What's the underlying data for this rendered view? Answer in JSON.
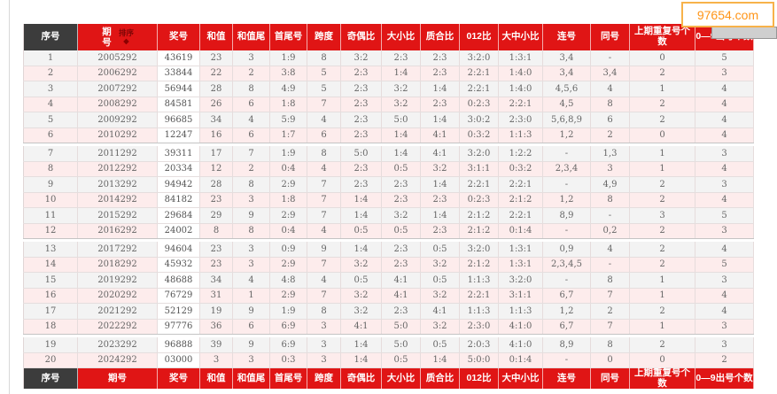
{
  "watermark": {
    "text": "97654.com"
  },
  "colors": {
    "header_red": "#e01515",
    "header_dark": "#3c3c3c",
    "row_pink": "#fdecec",
    "row_gray": "#f3f3f3",
    "watermark_orange": "#ff9518",
    "watermark_border": "#f7b24a"
  },
  "table": {
    "sort_label": "排序",
    "sort_arrow": "◆",
    "columns": [
      "序号",
      "期号",
      "奖号",
      "和值",
      "和值尾",
      "首尾号",
      "跨度",
      "奇偶比",
      "大小比",
      "质合比",
      "012比",
      "大中小比",
      "连号",
      "同号",
      "上期重复号个数",
      "0—9出号个数"
    ],
    "column_keys": [
      "serial",
      "period",
      "prize",
      "sum",
      "sum-tail",
      "first-last",
      "span",
      "odd-even",
      "big-small",
      "prime-composite",
      "zero-one-two",
      "big-mid-small",
      "consecutive",
      "same",
      "repeat-count",
      "digit-count"
    ],
    "group_ends": [
      5,
      11,
      17
    ],
    "rows": [
      [
        "1",
        "2005292",
        "43619",
        "23",
        "3",
        "1:9",
        "8",
        "3:2",
        "2:3",
        "2:3",
        "3:2:0",
        "1:3:1",
        "3,4",
        "-",
        "0",
        "5"
      ],
      [
        "2",
        "2006292",
        "33844",
        "22",
        "2",
        "3:8",
        "5",
        "2:3",
        "1:4",
        "2:3",
        "2:2:1",
        "1:4:0",
        "3,4",
        "3,4",
        "2",
        "3"
      ],
      [
        "3",
        "2007292",
        "56944",
        "28",
        "8",
        "4:9",
        "5",
        "2:3",
        "3:2",
        "1:4",
        "2:2:1",
        "1:4:0",
        "4,5,6",
        "4",
        "1",
        "4"
      ],
      [
        "4",
        "2008292",
        "84581",
        "26",
        "6",
        "1:8",
        "7",
        "2:3",
        "3:2",
        "2:3",
        "0:2:3",
        "2:2:1",
        "4,5",
        "8",
        "2",
        "4"
      ],
      [
        "5",
        "2009292",
        "96685",
        "34",
        "4",
        "5:9",
        "4",
        "2:3",
        "5:0",
        "1:4",
        "3:0:2",
        "2:3:0",
        "5,6,8,9",
        "6",
        "2",
        "4"
      ],
      [
        "6",
        "2010292",
        "12247",
        "16",
        "6",
        "1:7",
        "6",
        "2:3",
        "1:4",
        "4:1",
        "0:3:2",
        "1:1:3",
        "1,2",
        "2",
        "0",
        "4"
      ],
      [
        "7",
        "2011292",
        "39311",
        "17",
        "7",
        "1:9",
        "8",
        "5:0",
        "1:4",
        "4:1",
        "3:2:0",
        "1:2:2",
        "-",
        "1,3",
        "1",
        "3"
      ],
      [
        "8",
        "2012292",
        "20334",
        "12",
        "2",
        "0:4",
        "4",
        "2:3",
        "0:5",
        "3:2",
        "3:1:1",
        "0:3:2",
        "2,3,4",
        "3",
        "1",
        "4"
      ],
      [
        "9",
        "2013292",
        "94942",
        "28",
        "8",
        "2:9",
        "7",
        "2:3",
        "2:3",
        "1:4",
        "2:2:1",
        "2:2:1",
        "-",
        "4,9",
        "2",
        "3"
      ],
      [
        "10",
        "2014292",
        "84182",
        "23",
        "3",
        "1:8",
        "7",
        "1:4",
        "2:3",
        "2:3",
        "0:2:3",
        "2:1:2",
        "1,2",
        "8",
        "2",
        "4"
      ],
      [
        "11",
        "2015292",
        "29684",
        "29",
        "9",
        "2:9",
        "7",
        "1:4",
        "3:2",
        "1:4",
        "2:1:2",
        "2:2:1",
        "8,9",
        "-",
        "3",
        "5"
      ],
      [
        "12",
        "2016292",
        "24002",
        "8",
        "8",
        "0:4",
        "4",
        "0:5",
        "0:5",
        "2:3",
        "2:1:2",
        "0:1:4",
        "-",
        "0,2",
        "2",
        "3"
      ],
      [
        "13",
        "2017292",
        "94604",
        "23",
        "3",
        "0:9",
        "9",
        "1:4",
        "2:3",
        "0:5",
        "3:2:0",
        "1:3:1",
        "0,9",
        "4",
        "2",
        "4"
      ],
      [
        "14",
        "2018292",
        "45932",
        "23",
        "3",
        "2:9",
        "7",
        "3:2",
        "2:3",
        "3:2",
        "2:1:2",
        "1:3:1",
        "2,3,4,5",
        "-",
        "2",
        "5"
      ],
      [
        "15",
        "2019292",
        "48688",
        "34",
        "4",
        "4:8",
        "4",
        "0:5",
        "4:1",
        "0:5",
        "1:1:3",
        "3:2:0",
        "-",
        "8",
        "1",
        "3"
      ],
      [
        "16",
        "2020292",
        "76729",
        "31",
        "1",
        "2:9",
        "7",
        "3:2",
        "4:1",
        "3:2",
        "2:2:1",
        "3:1:1",
        "6,7",
        "7",
        "1",
        "4"
      ],
      [
        "17",
        "2021292",
        "52129",
        "19",
        "9",
        "1:9",
        "8",
        "3:2",
        "2:3",
        "4:1",
        "1:1:3",
        "1:1:3",
        "1,2",
        "2",
        "2",
        "4"
      ],
      [
        "18",
        "2022292",
        "97776",
        "36",
        "6",
        "6:9",
        "3",
        "4:1",
        "5:0",
        "3:2",
        "2:3:0",
        "4:1:0",
        "6,7",
        "7",
        "1",
        "3"
      ],
      [
        "19",
        "2023292",
        "96888",
        "39",
        "9",
        "6:9",
        "3",
        "1:4",
        "5:0",
        "0:5",
        "2:0:3",
        "4:1:0",
        "8,9",
        "8",
        "2",
        "3"
      ],
      [
        "20",
        "2024292",
        "03000",
        "3",
        "3",
        "0:3",
        "3",
        "1:4",
        "0:5",
        "1:4",
        "5:0:0",
        "0:1:4",
        "-",
        "0",
        "0",
        "2"
      ]
    ]
  }
}
